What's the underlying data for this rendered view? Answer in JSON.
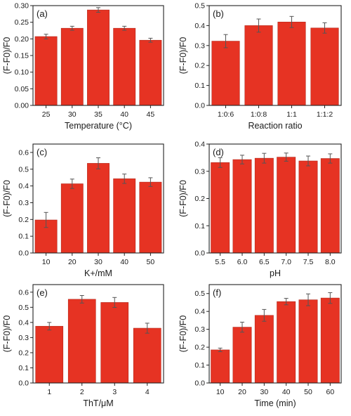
{
  "colors": {
    "bar": "#e63323",
    "bar_edge": "#b5281b",
    "axis": "#222222",
    "errorbar": "#555555"
  },
  "chart_data": [
    {
      "type": "bar",
      "panel_label": "(a)",
      "categories": [
        "25",
        "30",
        "35",
        "40",
        "45"
      ],
      "values": [
        0.207,
        0.232,
        0.287,
        0.232,
        0.196
      ],
      "errors": [
        0.007,
        0.006,
        0.007,
        0.006,
        0.006
      ],
      "xlabel": "Temperature (°C)",
      "ylabel": "(F-F0)/F0",
      "ylim": [
        0,
        0.3
      ],
      "yticks": [
        "0.00",
        "0.05",
        "0.10",
        "0.15",
        "0.20",
        "0.25",
        "0.30"
      ],
      "grid": false
    },
    {
      "type": "bar",
      "panel_label": "(b)",
      "categories": [
        "1:0:6",
        "1:0:8",
        "1:1",
        "1:1:2"
      ],
      "values": [
        0.322,
        0.4,
        0.418,
        0.388
      ],
      "errors": [
        0.033,
        0.033,
        0.028,
        0.026
      ],
      "xlabel": "Reaction ratio",
      "ylabel": "(F-F0)/F0",
      "ylim": [
        0,
        0.5
      ],
      "yticks": [
        "0.0",
        "0.1",
        "0.2",
        "0.3",
        "0.4",
        "0.5"
      ],
      "grid": false
    },
    {
      "type": "bar",
      "panel_label": "(c)",
      "categories": [
        "10",
        "20",
        "30",
        "40",
        "50"
      ],
      "values": [
        0.197,
        0.413,
        0.535,
        0.443,
        0.423
      ],
      "errors": [
        0.045,
        0.028,
        0.033,
        0.028,
        0.026
      ],
      "xlabel": "K+/mM",
      "ylabel": "(F-F0)/F0",
      "ylim": [
        0,
        0.65
      ],
      "yticks": [
        "0.0",
        "0.1",
        "0.2",
        "0.3",
        "0.4",
        "0.5",
        "0.6"
      ],
      "grid": false
    },
    {
      "type": "bar",
      "panel_label": "(d)",
      "categories": [
        "5.5",
        "6.0",
        "6.5",
        "7.0",
        "7.5",
        "8.0"
      ],
      "values": [
        0.332,
        0.343,
        0.348,
        0.352,
        0.338,
        0.347
      ],
      "errors": [
        0.018,
        0.016,
        0.018,
        0.015,
        0.018,
        0.017
      ],
      "xlabel": "pH",
      "ylabel": "(F-F0)/F0",
      "ylim": [
        0,
        0.4
      ],
      "yticks": [
        "0.0",
        "0.1",
        "0.2",
        "0.3",
        "0.4"
      ],
      "grid": false
    },
    {
      "type": "bar",
      "panel_label": "(e)",
      "categories": [
        "1",
        "2",
        "3",
        "4"
      ],
      "values": [
        0.375,
        0.553,
        0.532,
        0.362
      ],
      "errors": [
        0.025,
        0.025,
        0.033,
        0.033
      ],
      "xlabel": "ThT/μM",
      "ylabel": "(F-F0)/F0",
      "ylim": [
        0,
        0.65
      ],
      "yticks": [
        "0.0",
        "0.1",
        "0.2",
        "0.3",
        "0.4",
        "0.5",
        "0.6"
      ],
      "grid": false
    },
    {
      "type": "bar",
      "panel_label": "(f)",
      "categories": [
        "10",
        "20",
        "30",
        "40",
        "50",
        "60"
      ],
      "values": [
        0.185,
        0.312,
        0.378,
        0.455,
        0.465,
        0.475
      ],
      "errors": [
        0.01,
        0.028,
        0.033,
        0.018,
        0.033,
        0.03
      ],
      "xlabel": "Time (min)",
      "ylabel": "(F-F0)/F0",
      "ylim": [
        0,
        0.55
      ],
      "yticks": [
        "0.0",
        "0.1",
        "0.2",
        "0.3",
        "0.4",
        "0.5"
      ],
      "grid": false
    }
  ]
}
